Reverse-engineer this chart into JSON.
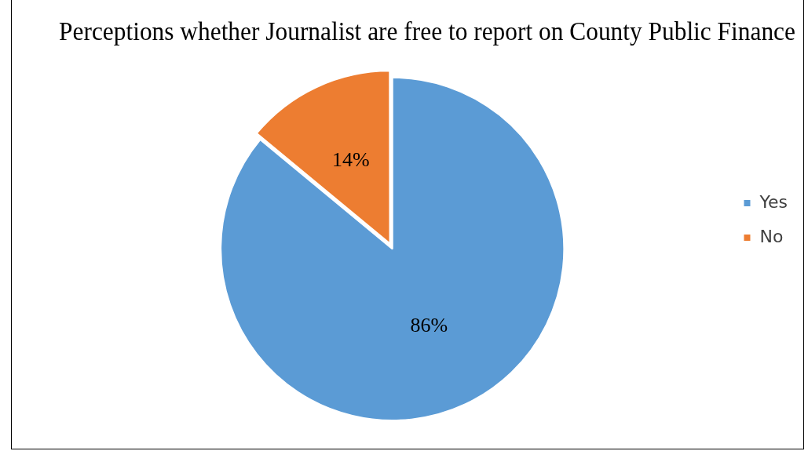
{
  "chart_data": {
    "type": "pie",
    "title": "Perceptions whether Journalist are free to report on County Public Finance",
    "categories": [
      "Yes",
      "No"
    ],
    "values": [
      86,
      14
    ],
    "colors": [
      "#5b9bd5",
      "#ed7d31"
    ],
    "value_labels": [
      "86%",
      "14%"
    ],
    "legend": "right"
  }
}
